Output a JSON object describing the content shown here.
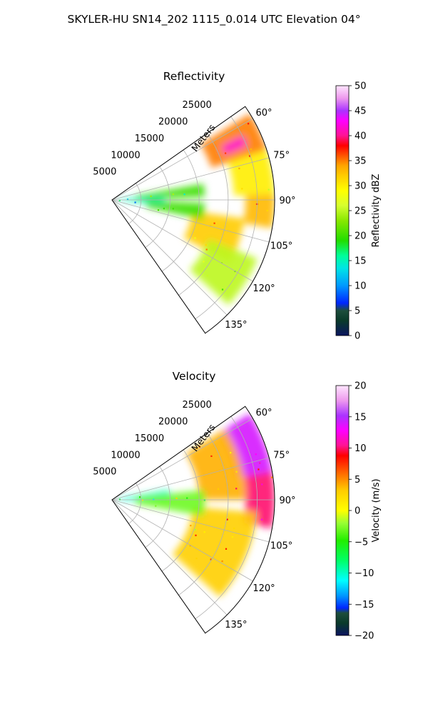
{
  "title": "SKYLER-HU  SN14_202  1115_0.014 UTC Elevation 04°",
  "chart_data": [
    {
      "type": "heatmap",
      "title": "Reflectivity",
      "radial_label": "Meters",
      "radial_ticks": [
        "5000",
        "10000",
        "15000",
        "20000",
        "25000"
      ],
      "radial_tick_values": [
        5000,
        10000,
        15000,
        20000,
        25000
      ],
      "r_max": 28000,
      "azimuth_ticks": [
        "60°",
        "75°",
        "90°",
        "105°",
        "120°",
        "135°"
      ],
      "azimuth_tick_values": [
        60,
        75,
        90,
        105,
        120,
        135
      ],
      "azimuth_range": [
        55,
        145
      ],
      "colorbar": {
        "label": "Reflectivity dBZ",
        "ticks": [
          "0",
          "5",
          "10",
          "15",
          "20",
          "25",
          "30",
          "35",
          "40",
          "45",
          "50"
        ],
        "range": [
          0,
          50
        ]
      },
      "features": [
        {
          "az_min": 58,
          "az_max": 72,
          "r_min": 18000,
          "r_max": 28000,
          "value": 35
        },
        {
          "az_min": 64,
          "az_max": 68,
          "r_min": 21000,
          "r_max": 25000,
          "value": 42
        },
        {
          "az_min": 72,
          "az_max": 88,
          "r_min": 21000,
          "r_max": 28000,
          "value": 30
        },
        {
          "az_min": 88,
          "az_max": 100,
          "r_min": 23000,
          "r_max": 28000,
          "value": 33
        },
        {
          "az_min": 98,
          "az_max": 118,
          "r_min": 14000,
          "r_max": 23000,
          "value": 32
        },
        {
          "az_min": 112,
          "az_max": 132,
          "r_min": 18000,
          "r_max": 27000,
          "value": 25
        },
        {
          "az_min": 85,
          "az_max": 95,
          "r_min": 0,
          "r_max": 9000,
          "value": 15
        },
        {
          "az_min": 80,
          "az_max": 88,
          "r_min": 4000,
          "r_max": 16000,
          "value": 20
        },
        {
          "az_min": 92,
          "az_max": 102,
          "r_min": 6000,
          "r_max": 16000,
          "value": 20
        }
      ]
    },
    {
      "type": "heatmap",
      "title": "Velocity",
      "radial_label": "Meters",
      "radial_ticks": [
        "5000",
        "10000",
        "15000",
        "20000",
        "25000"
      ],
      "radial_tick_values": [
        5000,
        10000,
        15000,
        20000,
        25000
      ],
      "r_max": 28000,
      "azimuth_ticks": [
        "60°",
        "75°",
        "90°",
        "105°",
        "120°",
        "135°"
      ],
      "azimuth_tick_values": [
        60,
        75,
        90,
        105,
        120,
        135
      ],
      "azimuth_range": [
        55,
        145
      ],
      "colorbar": {
        "label": "Velocity (m/s)",
        "ticks": [
          "20",
          "15",
          "10",
          "5",
          "0",
          "−5",
          "−10",
          "−15",
          "−20"
        ],
        "range": [
          -20,
          20
        ]
      },
      "features": [
        {
          "az_min": 58,
          "az_max": 80,
          "r_min": 22000,
          "r_max": 28000,
          "value": 14
        },
        {
          "az_min": 80,
          "az_max": 100,
          "r_min": 23000,
          "r_max": 28000,
          "value": 10
        },
        {
          "az_min": 58,
          "az_max": 90,
          "r_min": 15000,
          "r_max": 23000,
          "value": 4
        },
        {
          "az_min": 95,
          "az_max": 132,
          "r_min": 14000,
          "r_max": 25000,
          "value": 3
        },
        {
          "az_min": 80,
          "az_max": 92,
          "r_min": 0,
          "r_max": 10000,
          "value": -10
        },
        {
          "az_min": 84,
          "az_max": 100,
          "r_min": 4000,
          "r_max": 16000,
          "value": -3
        }
      ]
    }
  ]
}
